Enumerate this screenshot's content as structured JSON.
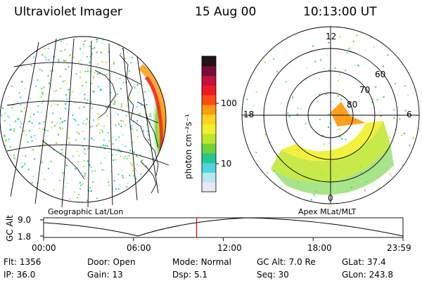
{
  "header": {
    "instrument": "Ultraviolet Imager",
    "date": "15 Aug 00",
    "time": "10:13:00 UT"
  },
  "colorbar": {
    "unit_label": "photon cm⁻²s⁻¹",
    "tick_100": "100",
    "tick_10": "10",
    "colors": [
      "#e8e8f0",
      "#b8e6f2",
      "#4fd3e0",
      "#22c98a",
      "#6ed23a",
      "#bde62a",
      "#f2f02a",
      "#ffd21e",
      "#ff9b10",
      "#ff4a14",
      "#ee1a22",
      "#c4103a",
      "#7a0a3a",
      "#241018"
    ]
  },
  "left_panel": {
    "caption": "Geographic Lat/Lon"
  },
  "right_panel": {
    "caption": "Apex MLat/MLT",
    "mlt_labels": {
      "top": "12",
      "left": "18",
      "right": "6",
      "bottom": "0"
    },
    "lat_labels": [
      "60",
      "70",
      "80"
    ]
  },
  "altitude_plot": {
    "ylabel": "GC Alt",
    "ytick_top": "9.0",
    "ytick_bottom": "1.8",
    "xticks": [
      "00:00",
      "06:00",
      "12:00",
      "18:00",
      "23:59"
    ],
    "current_marker_time": "10:13"
  },
  "status": {
    "row1": [
      {
        "label": "Flt:",
        "value": "1356"
      },
      {
        "label": "Door:",
        "value": "Open"
      },
      {
        "label": "Mode:",
        "value": "Normal"
      },
      {
        "label": "GC Alt:",
        "value": "7.0 Re"
      },
      {
        "label": "GLat:",
        "value": "37.4"
      }
    ],
    "row2": [
      {
        "label": "IP:",
        "value": "36.0"
      },
      {
        "label": "Gain:",
        "value": "13"
      },
      {
        "label": "Dsp:",
        "value": "5.1"
      },
      {
        "label": "Seq:",
        "value": "30"
      },
      {
        "label": "GLon:",
        "value": "243.8"
      }
    ]
  },
  "accent_colors": {
    "marker": "#e00000"
  }
}
